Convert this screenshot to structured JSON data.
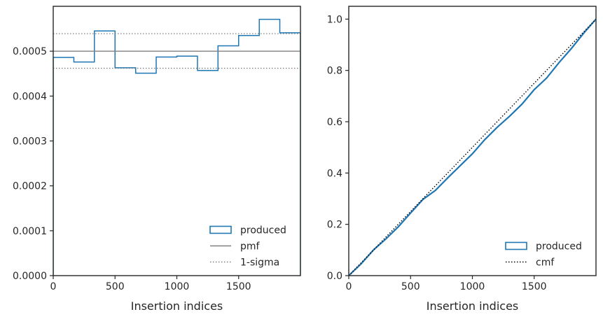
{
  "chart_data": [
    {
      "type": "step",
      "title": "",
      "xlabel": "Insertion indices",
      "ylabel": "",
      "xlim": [
        0,
        2000
      ],
      "ylim": [
        0,
        0.0006
      ],
      "x_ticks": [
        0,
        500,
        1000,
        1500
      ],
      "x_tick_labels": [
        "0",
        "500",
        "1000",
        "1500"
      ],
      "y_ticks": [
        0,
        0.0001,
        0.0002,
        0.0003,
        0.0004,
        0.0005
      ],
      "y_tick_labels": [
        "0.0000",
        "0.0001",
        "0.0002",
        "0.0003",
        "0.0004",
        "0.0005"
      ],
      "grid": false,
      "legend_position": "lower-right",
      "series": [
        {
          "name": "produced",
          "kind": "histogram-step",
          "color": "#1f77b4",
          "bin_edges": [
            0,
            167,
            333,
            500,
            667,
            833,
            1000,
            1167,
            1333,
            1500,
            1667,
            1833,
            2000
          ],
          "values": [
            0.000486,
            0.000476,
            0.000545,
            0.000463,
            0.000451,
            0.000487,
            0.000489,
            0.000457,
            0.000512,
            0.000535,
            0.000571,
            0.000541
          ]
        },
        {
          "name": "pmf",
          "kind": "hline",
          "y": 0.0005,
          "color": "#808080",
          "style": "solid"
        },
        {
          "name": "1-sigma",
          "kind": "hline",
          "y": [
            0.000539,
            0.000462
          ],
          "color": "#808080",
          "style": "dotted"
        }
      ]
    },
    {
      "type": "line",
      "title": "",
      "xlabel": "Insertion indices",
      "ylabel": "",
      "xlim": [
        0,
        2000
      ],
      "ylim": [
        0,
        1.05
      ],
      "x_ticks": [
        0,
        500,
        1000,
        1500
      ],
      "x_tick_labels": [
        "0",
        "500",
        "1000",
        "1500"
      ],
      "y_ticks": [
        0,
        0.2,
        0.4,
        0.6,
        0.8,
        1.0
      ],
      "y_tick_labels": [
        "0.0",
        "0.2",
        "0.4",
        "0.6",
        "0.8",
        "1.0"
      ],
      "grid": false,
      "legend_position": "lower-right",
      "series": [
        {
          "name": "produced",
          "color": "#1f77b4",
          "x": [
            0,
            100,
            200,
            300,
            400,
            500,
            600,
            700,
            800,
            900,
            1000,
            1100,
            1200,
            1300,
            1400,
            1500,
            1600,
            1700,
            1800,
            1900,
            2000
          ],
          "y": [
            0,
            0.046,
            0.1,
            0.143,
            0.19,
            0.244,
            0.297,
            0.332,
            0.381,
            0.428,
            0.475,
            0.53,
            0.578,
            0.621,
            0.668,
            0.725,
            0.77,
            0.83,
            0.885,
            0.945,
            1.0
          ]
        },
        {
          "name": "cmf",
          "color": "#000000",
          "style": "dotted",
          "x": [
            0,
            2000
          ],
          "y": [
            0,
            1.0
          ]
        }
      ]
    }
  ]
}
